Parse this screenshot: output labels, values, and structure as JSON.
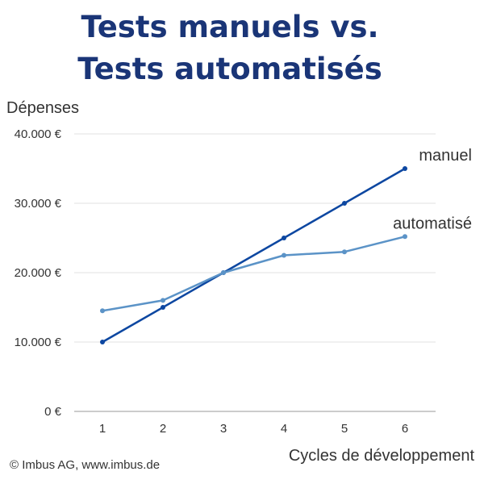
{
  "title_line1": "Tests manuels vs.",
  "title_line2": "Tests automatisés",
  "credit": "© Imbus AG, www.imbus.de",
  "colors": {
    "title": "#1a3577",
    "manuel": "#0d47a1",
    "automatise": "#5b93c7",
    "grid": "#e0e0e0",
    "text": "#333333"
  },
  "chart_data": {
    "type": "line",
    "ylabel": "Dépenses",
    "xlabel": "Cycles de développement",
    "x": [
      1,
      2,
      3,
      4,
      5,
      6
    ],
    "x_tick_labels": [
      "1",
      "2",
      "3",
      "4",
      "5",
      "6"
    ],
    "ylim": [
      0,
      40000
    ],
    "y_ticks": [
      0,
      10000,
      20000,
      30000,
      40000
    ],
    "y_tick_labels": [
      "0 €",
      "10.000 €",
      "20.000 €",
      "30.000 €",
      "40.000 €"
    ],
    "grid": "horizontal",
    "series": [
      {
        "name": "manuel",
        "values": [
          10000,
          15000,
          20000,
          25000,
          30000,
          35000
        ]
      },
      {
        "name": "automatisé",
        "values": [
          14500,
          16000,
          20000,
          22500,
          23000,
          25200
        ]
      }
    ]
  }
}
